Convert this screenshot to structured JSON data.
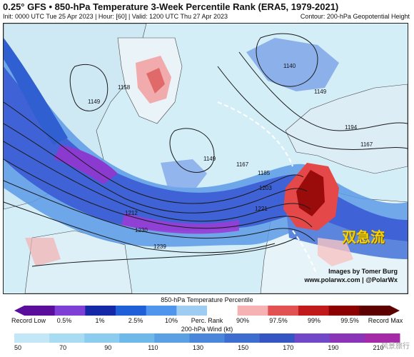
{
  "header": {
    "title": "0.25° GFS • 850-hPa Temperature 3-Week Percentile Rank (ERA5, 1979-2021)",
    "subtitle": "Init: 0000 UTC Tue 25 Apr 2023 | Hour: [60] | Valid: 1200 UTC Thu 27 Apr 2023",
    "contour_note": "Contour: 200-hPa Geopotential Height"
  },
  "map": {
    "contour_labels": [
      "1149",
      "1158",
      "1140",
      "1149",
      "1149",
      "1167",
      "1185",
      "1203",
      "1221",
      "1212",
      "1230",
      "1239",
      "1194",
      "1167"
    ],
    "annotation": "双急流",
    "credit_line1": "Images by Tomer Burg",
    "credit_line2": "www.polarwx.com | @PolarWx"
  },
  "legend_temp": {
    "title": "850-hPa Temperature Percentile",
    "ticks": [
      "Record Low",
      "0.5%",
      "1%",
      "2.5%",
      "10%",
      "Perc. Rank",
      "90%",
      "97.5%",
      "99%",
      "99.5%",
      "Record Max"
    ],
    "colors": [
      "#5a0f9c",
      "#7d3fd6",
      "#1428a8",
      "#1f5fd8",
      "#4f95ee",
      "#9fcdf2",
      "#ffffff",
      "#f6b2b2",
      "#e35252",
      "#c01a1a",
      "#8c0000",
      "#5c0000"
    ]
  },
  "legend_wind": {
    "title": "200-hPa Wind (kt)",
    "ticks": [
      "50",
      "70",
      "90",
      "110",
      "130",
      "150",
      "170",
      "190",
      "210"
    ],
    "colors": [
      "#c4e7f7",
      "#a8dcf2",
      "#8ccdef",
      "#6fb8ea",
      "#5aa0e3",
      "#4a86da",
      "#3d6dcf",
      "#3555c2",
      "#7048c8",
      "#8a34b8",
      "#a52aa8"
    ]
  },
  "watermark": "风景旅行"
}
